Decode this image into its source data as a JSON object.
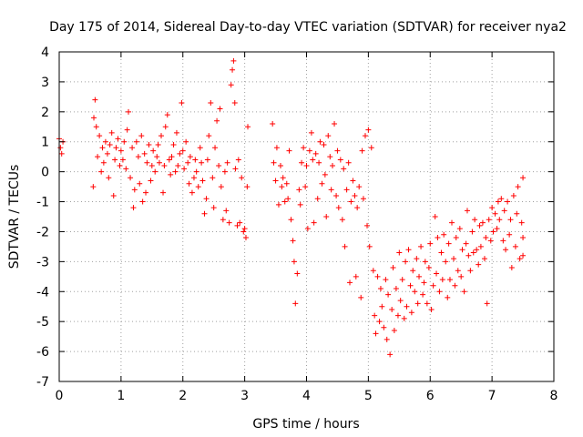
{
  "chart_data": {
    "type": "scatter",
    "title": "Day 175 of 2014, Sidereal Day-to-day VTEC variation (SDTVAR) for receiver nya2",
    "xlabel": "GPS time / hours",
    "ylabel": "SDTVAR / TECUs",
    "xlim": [
      0,
      8
    ],
    "ylim": [
      -7,
      4
    ],
    "xticks": [
      "0",
      "1",
      "2",
      "3",
      "4",
      "5",
      "6",
      "7",
      "8"
    ],
    "yticks": [
      "4",
      "3",
      "2",
      "1",
      "0",
      "-1",
      "-2",
      "-3",
      "-4",
      "-5",
      "-6",
      "-7"
    ],
    "grid": true,
    "marker": "+",
    "color": "#ff0000",
    "series": [
      {
        "name": "nya2",
        "points": [
          [
            0.0,
            1.1
          ],
          [
            0.02,
            0.8
          ],
          [
            0.04,
            0.6
          ],
          [
            0.06,
            1.0
          ],
          [
            0.55,
            -0.5
          ],
          [
            0.56,
            1.8
          ],
          [
            0.58,
            2.4
          ],
          [
            0.6,
            1.5
          ],
          [
            0.62,
            0.5
          ],
          [
            0.65,
            1.2
          ],
          [
            0.68,
            0.0
          ],
          [
            0.7,
            0.8
          ],
          [
            0.72,
            0.3
          ],
          [
            0.75,
            1.0
          ],
          [
            0.78,
            0.6
          ],
          [
            0.8,
            -0.2
          ],
          [
            0.82,
            0.9
          ],
          [
            0.85,
            1.3
          ],
          [
            0.88,
            -0.8
          ],
          [
            0.9,
            0.4
          ],
          [
            0.92,
            0.8
          ],
          [
            0.95,
            1.1
          ],
          [
            0.98,
            0.2
          ],
          [
            1.0,
            0.7
          ],
          [
            1.03,
            0.4
          ],
          [
            1.05,
            1.0
          ],
          [
            1.08,
            0.1
          ],
          [
            1.1,
            1.4
          ],
          [
            1.12,
            2.0
          ],
          [
            1.15,
            -0.2
          ],
          [
            1.18,
            0.8
          ],
          [
            1.2,
            -1.2
          ],
          [
            1.22,
            -0.6
          ],
          [
            1.25,
            1.0
          ],
          [
            1.28,
            0.5
          ],
          [
            1.3,
            -0.4
          ],
          [
            1.33,
            1.2
          ],
          [
            1.35,
            -1.0
          ],
          [
            1.38,
            0.6
          ],
          [
            1.4,
            -0.7
          ],
          [
            1.42,
            0.3
          ],
          [
            1.45,
            0.9
          ],
          [
            1.48,
            -0.3
          ],
          [
            1.5,
            0.2
          ],
          [
            1.52,
            0.7
          ],
          [
            1.55,
            0.0
          ],
          [
            1.58,
            0.5
          ],
          [
            1.6,
            0.9
          ],
          [
            1.62,
            0.3
          ],
          [
            1.65,
            1.2
          ],
          [
            1.68,
            -0.7
          ],
          [
            1.7,
            0.2
          ],
          [
            1.72,
            1.5
          ],
          [
            1.75,
            1.9
          ],
          [
            1.78,
            0.4
          ],
          [
            1.8,
            -0.1
          ],
          [
            1.82,
            0.5
          ],
          [
            1.85,
            0.9
          ],
          [
            1.88,
            0.0
          ],
          [
            1.9,
            1.3
          ],
          [
            1.92,
            0.2
          ],
          [
            1.95,
            0.6
          ],
          [
            1.98,
            2.3
          ],
          [
            2.0,
            0.7
          ],
          [
            2.02,
            0.1
          ],
          [
            2.05,
            1.0
          ],
          [
            2.08,
            0.3
          ],
          [
            2.1,
            -0.4
          ],
          [
            2.12,
            0.5
          ],
          [
            2.15,
            -0.7
          ],
          [
            2.18,
            -0.2
          ],
          [
            2.2,
            0.4
          ],
          [
            2.22,
            0.0
          ],
          [
            2.25,
            -0.5
          ],
          [
            2.28,
            0.8
          ],
          [
            2.3,
            0.3
          ],
          [
            2.32,
            -0.3
          ],
          [
            2.35,
            -1.4
          ],
          [
            2.38,
            -0.9
          ],
          [
            2.4,
            0.4
          ],
          [
            2.42,
            1.2
          ],
          [
            2.45,
            2.3
          ],
          [
            2.48,
            -0.2
          ],
          [
            2.5,
            -1.2
          ],
          [
            2.52,
            0.8
          ],
          [
            2.55,
            1.7
          ],
          [
            2.58,
            0.2
          ],
          [
            2.6,
            2.1
          ],
          [
            2.62,
            -0.5
          ],
          [
            2.65,
            -1.6
          ],
          [
            2.68,
            0.0
          ],
          [
            2.7,
            -1.3
          ],
          [
            2.72,
            0.3
          ],
          [
            2.75,
            -1.7
          ],
          [
            2.78,
            2.9
          ],
          [
            2.8,
            3.4
          ],
          [
            2.82,
            3.7
          ],
          [
            2.84,
            2.3
          ],
          [
            2.85,
            0.1
          ],
          [
            2.88,
            -1.8
          ],
          [
            2.9,
            0.4
          ],
          [
            2.92,
            -1.7
          ],
          [
            2.95,
            -0.2
          ],
          [
            2.98,
            -2.0
          ],
          [
            3.0,
            -1.9
          ],
          [
            3.02,
            -2.2
          ],
          [
            3.04,
            -0.5
          ],
          [
            3.05,
            1.5
          ],
          [
            3.45,
            1.6
          ],
          [
            3.47,
            0.3
          ],
          [
            3.5,
            -0.3
          ],
          [
            3.52,
            0.8
          ],
          [
            3.55,
            -1.1
          ],
          [
            3.58,
            0.2
          ],
          [
            3.6,
            -0.5
          ],
          [
            3.62,
            -0.2
          ],
          [
            3.65,
            -1.0
          ],
          [
            3.68,
            -0.4
          ],
          [
            3.7,
            -0.9
          ],
          [
            3.72,
            0.7
          ],
          [
            3.75,
            -1.6
          ],
          [
            3.78,
            -2.3
          ],
          [
            3.8,
            -3.0
          ],
          [
            3.82,
            -4.4
          ],
          [
            3.85,
            -3.4
          ],
          [
            3.88,
            -0.6
          ],
          [
            3.9,
            -1.1
          ],
          [
            3.92,
            0.3
          ],
          [
            3.95,
            0.8
          ],
          [
            3.98,
            -0.5
          ],
          [
            4.0,
            0.2
          ],
          [
            4.02,
            -1.9
          ],
          [
            4.05,
            0.7
          ],
          [
            4.08,
            1.3
          ],
          [
            4.1,
            0.4
          ],
          [
            4.12,
            -1.7
          ],
          [
            4.15,
            0.6
          ],
          [
            4.18,
            -0.9
          ],
          [
            4.2,
            0.3
          ],
          [
            4.22,
            1.0
          ],
          [
            4.25,
            -0.4
          ],
          [
            4.28,
            0.9
          ],
          [
            4.3,
            -0.1
          ],
          [
            4.32,
            -1.5
          ],
          [
            4.35,
            1.2
          ],
          [
            4.38,
            0.5
          ],
          [
            4.4,
            -0.6
          ],
          [
            4.42,
            0.2
          ],
          [
            4.45,
            1.6
          ],
          [
            4.48,
            -0.8
          ],
          [
            4.5,
            0.7
          ],
          [
            4.52,
            -1.2
          ],
          [
            4.55,
            0.4
          ],
          [
            4.58,
            -1.6
          ],
          [
            4.6,
            0.1
          ],
          [
            4.62,
            -2.5
          ],
          [
            4.65,
            -0.6
          ],
          [
            4.68,
            0.3
          ],
          [
            4.7,
            -3.7
          ],
          [
            4.72,
            -1.0
          ],
          [
            4.75,
            -0.3
          ],
          [
            4.78,
            -0.8
          ],
          [
            4.8,
            -3.5
          ],
          [
            4.82,
            -1.2
          ],
          [
            4.85,
            -0.5
          ],
          [
            4.88,
            -4.2
          ],
          [
            4.9,
            0.7
          ],
          [
            4.92,
            -0.9
          ],
          [
            4.95,
            1.2
          ],
          [
            4.98,
            -1.8
          ],
          [
            5.0,
            1.4
          ],
          [
            5.02,
            -2.5
          ],
          [
            5.05,
            0.8
          ],
          [
            5.08,
            -3.3
          ],
          [
            5.1,
            -4.8
          ],
          [
            5.12,
            -5.4
          ],
          [
            5.15,
            -3.5
          ],
          [
            5.18,
            -5.0
          ],
          [
            5.2,
            -3.9
          ],
          [
            5.22,
            -4.5
          ],
          [
            5.25,
            -5.2
          ],
          [
            5.28,
            -3.6
          ],
          [
            5.3,
            -5.6
          ],
          [
            5.32,
            -4.1
          ],
          [
            5.35,
            -6.1
          ],
          [
            5.38,
            -4.6
          ],
          [
            5.4,
            -3.2
          ],
          [
            5.42,
            -5.3
          ],
          [
            5.45,
            -3.9
          ],
          [
            5.48,
            -4.8
          ],
          [
            5.5,
            -2.7
          ],
          [
            5.52,
            -4.3
          ],
          [
            5.55,
            -3.6
          ],
          [
            5.58,
            -4.9
          ],
          [
            5.6,
            -3.0
          ],
          [
            5.62,
            -4.5
          ],
          [
            5.65,
            -2.6
          ],
          [
            5.68,
            -3.8
          ],
          [
            5.7,
            -4.7
          ],
          [
            5.72,
            -3.3
          ],
          [
            5.75,
            -4.0
          ],
          [
            5.78,
            -2.9
          ],
          [
            5.8,
            -4.4
          ],
          [
            5.82,
            -3.5
          ],
          [
            5.85,
            -2.5
          ],
          [
            5.88,
            -4.1
          ],
          [
            5.9,
            -3.7
          ],
          [
            5.92,
            -3.0
          ],
          [
            5.95,
            -4.4
          ],
          [
            5.98,
            -3.2
          ],
          [
            6.0,
            -2.4
          ],
          [
            6.02,
            -4.6
          ],
          [
            6.05,
            -3.8
          ],
          [
            6.08,
            -1.5
          ],
          [
            6.1,
            -3.4
          ],
          [
            6.12,
            -2.2
          ],
          [
            6.15,
            -4.0
          ],
          [
            6.18,
            -2.7
          ],
          [
            6.2,
            -3.6
          ],
          [
            6.22,
            -2.1
          ],
          [
            6.25,
            -3.0
          ],
          [
            6.28,
            -4.2
          ],
          [
            6.3,
            -2.4
          ],
          [
            6.32,
            -3.6
          ],
          [
            6.35,
            -1.7
          ],
          [
            6.38,
            -2.9
          ],
          [
            6.4,
            -3.8
          ],
          [
            6.42,
            -2.2
          ],
          [
            6.45,
            -3.3
          ],
          [
            6.48,
            -1.9
          ],
          [
            6.5,
            -3.5
          ],
          [
            6.52,
            -2.6
          ],
          [
            6.55,
            -4.0
          ],
          [
            6.58,
            -2.4
          ],
          [
            6.6,
            -1.3
          ],
          [
            6.62,
            -2.8
          ],
          [
            6.65,
            -3.3
          ],
          [
            6.68,
            -2.0
          ],
          [
            6.7,
            -2.7
          ],
          [
            6.72,
            -1.6
          ],
          [
            6.75,
            -2.6
          ],
          [
            6.78,
            -3.1
          ],
          [
            6.8,
            -1.8
          ],
          [
            6.82,
            -2.5
          ],
          [
            6.85,
            -1.7
          ],
          [
            6.88,
            -2.9
          ],
          [
            6.9,
            -2.2
          ],
          [
            6.92,
            -4.4
          ],
          [
            6.95,
            -1.6
          ],
          [
            6.98,
            -2.3
          ],
          [
            7.0,
            -1.2
          ],
          [
            7.02,
            -2.0
          ],
          [
            7.05,
            -1.4
          ],
          [
            7.08,
            -1.9
          ],
          [
            7.1,
            -1.0
          ],
          [
            7.12,
            -1.6
          ],
          [
            7.15,
            -0.9
          ],
          [
            7.18,
            -2.3
          ],
          [
            7.2,
            -1.3
          ],
          [
            7.22,
            -2.6
          ],
          [
            7.25,
            -1.0
          ],
          [
            7.28,
            -2.1
          ],
          [
            7.3,
            -1.6
          ],
          [
            7.32,
            -3.2
          ],
          [
            7.35,
            -0.8
          ],
          [
            7.38,
            -2.5
          ],
          [
            7.4,
            -1.4
          ],
          [
            7.42,
            -0.5
          ],
          [
            7.45,
            -2.9
          ],
          [
            7.48,
            -1.7
          ],
          [
            7.5,
            -0.2
          ],
          [
            7.5,
            -2.2
          ],
          [
            7.5,
            -2.8
          ]
        ]
      }
    ]
  }
}
